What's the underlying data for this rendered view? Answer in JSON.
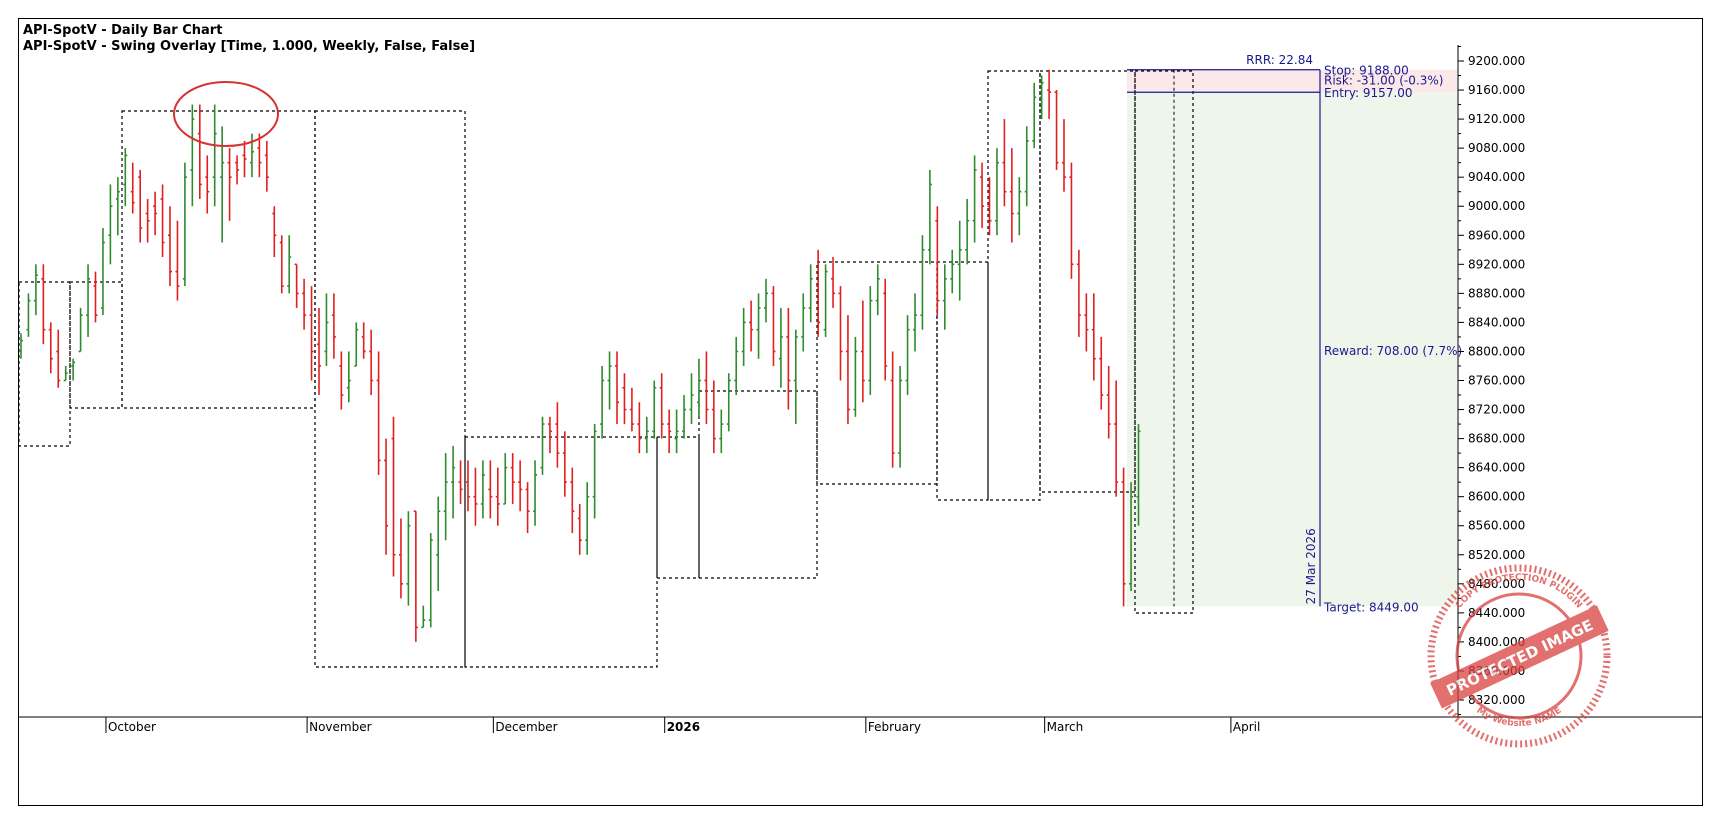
{
  "titles": {
    "line1": "API-SpotV - Daily Bar Chart",
    "line2": "API-SpotV - Swing Overlay [Time, 1.000, Weekly, False, False]"
  },
  "colors": {
    "up_bar": "#2e8b2e",
    "down_bar": "#e02020",
    "neutral_bar": "#000000",
    "trade_line": "#1a1a8c",
    "risk_zone": "#fbe9e9",
    "reward_zone": "#eef6ec",
    "annotation_circle": "#d93030",
    "stamp": "#d9413f"
  },
  "trade": {
    "rrr_label": "RRR: 22.84",
    "stop_label": "Stop: 9188.00",
    "risk_label": "Risk: -31.00 (-0.3%)",
    "entry_label": "Entry: 9157.00",
    "reward_label": "Reward: 708.00 (7.7%)",
    "target_label": "Target: 8449.00",
    "date_label": "27 Mar 2026",
    "stop": 9188,
    "entry": 9157,
    "target": 8449
  },
  "stamp": {
    "main": "PROTECTED IMAGE",
    "ring_top": "COPY PROTECTION PLUGIN",
    "ring_bottom": "My Website NAME"
  },
  "chart_data": {
    "type": "bar",
    "subtype": "ohlc",
    "title": "API-SpotV - Daily Bar Chart",
    "ylim": [
      8280,
      9240
    ],
    "y_ticks": [
      "9200.000",
      "9160.000",
      "9120.000",
      "9080.000",
      "9040.000",
      "9000.000",
      "8960.000",
      "8920.000",
      "8880.000",
      "8840.000",
      "8800.000",
      "8760.000",
      "8720.000",
      "8680.000",
      "8640.000",
      "8600.000",
      "8560.000",
      "8520.000",
      "8480.000",
      "8440.000",
      "8400.000",
      "8360.000",
      "8320.000"
    ],
    "x_months": [
      {
        "label": "October",
        "bold": false,
        "index": 11
      },
      {
        "label": "November",
        "bold": false,
        "index": 38
      },
      {
        "label": "December",
        "bold": false,
        "index": 63
      },
      {
        "label": "2026",
        "bold": true,
        "index": 86
      },
      {
        "label": "February",
        "bold": false,
        "index": 113
      },
      {
        "label": "March",
        "bold": false,
        "index": 137
      },
      {
        "label": "April",
        "bold": false,
        "index": 162
      }
    ],
    "ohlc": [
      [
        8800,
        8825,
        8790,
        8815
      ],
      [
        8830,
        8880,
        8820,
        8870
      ],
      [
        8870,
        8920,
        8850,
        8905
      ],
      [
        8900,
        8920,
        8810,
        8830
      ],
      [
        8830,
        8840,
        8770,
        8790
      ],
      [
        8800,
        8830,
        8750,
        8760
      ],
      [
        8760,
        8780,
        8760,
        8770
      ],
      [
        8780,
        8790,
        8760,
        8785
      ],
      [
        8800,
        8860,
        8800,
        8850
      ],
      [
        8850,
        8920,
        8820,
        8900
      ],
      [
        8890,
        8910,
        8840,
        8850
      ],
      [
        8860,
        8970,
        8850,
        8950
      ],
      [
        8960,
        9030,
        8920,
        9000
      ],
      [
        9010,
        9040,
        8960,
        9020
      ],
      [
        9030,
        9080,
        9000,
        9070
      ],
      [
        9020,
        9060,
        8990,
        9005
      ],
      [
        9040,
        9050,
        8950,
        8970
      ],
      [
        8990,
        9010,
        8950,
        8980
      ],
      [
        9000,
        9020,
        8960,
        8990
      ],
      [
        9010,
        9030,
        8930,
        8950
      ],
      [
        8960,
        9000,
        8890,
        8910
      ],
      [
        8910,
        8980,
        8870,
        8890
      ],
      [
        8900,
        9060,
        8890,
        9040
      ],
      [
        9050,
        9140,
        9000,
        9120
      ],
      [
        9100,
        9140,
        9010,
        9030
      ],
      [
        9040,
        9070,
        8990,
        9020
      ],
      [
        9040,
        9140,
        9000,
        9100
      ],
      [
        9040,
        9110,
        8950,
        9060
      ],
      [
        9060,
        9080,
        8980,
        9040
      ],
      [
        9060,
        9070,
        9030,
        9050
      ],
      [
        9070,
        9090,
        9040,
        9065
      ],
      [
        9060,
        9100,
        9040,
        9075
      ],
      [
        9080,
        9100,
        9040,
        9060
      ],
      [
        9070,
        9090,
        9020,
        9040
      ],
      [
        8990,
        9000,
        8930,
        8960
      ],
      [
        8950,
        8960,
        8880,
        8890
      ],
      [
        8890,
        8960,
        8880,
        8930
      ],
      [
        8920,
        8920,
        8860,
        8880
      ],
      [
        8880,
        8900,
        8830,
        8850
      ],
      [
        8850,
        8890,
        8760,
        8800
      ],
      [
        8810,
        8860,
        8740,
        8780
      ],
      [
        8800,
        8880,
        8780,
        8840
      ],
      [
        8850,
        8880,
        8790,
        8820
      ],
      [
        8780,
        8800,
        8720,
        8740
      ],
      [
        8750,
        8800,
        8730,
        8760
      ],
      [
        8780,
        8840,
        8780,
        8830
      ],
      [
        8820,
        8840,
        8790,
        8800
      ],
      [
        8800,
        8830,
        8740,
        8760
      ],
      [
        8760,
        8800,
        8630,
        8650
      ],
      [
        8650,
        8680,
        8520,
        8560
      ],
      [
        8680,
        8710,
        8490,
        8520
      ],
      [
        8520,
        8570,
        8460,
        8480
      ],
      [
        8480,
        8580,
        8450,
        8560
      ],
      [
        8580,
        8580,
        8400,
        8420
      ],
      [
        8420,
        8450,
        8420,
        8430
      ],
      [
        8430,
        8550,
        8420,
        8540
      ],
      [
        8520,
        8600,
        8470,
        8580
      ],
      [
        8580,
        8660,
        8540,
        8620
      ],
      [
        8620,
        8670,
        8570,
        8640
      ],
      [
        8620,
        8650,
        8590,
        8610
      ],
      [
        8620,
        8650,
        8580,
        8600
      ],
      [
        8600,
        8640,
        8560,
        8590
      ],
      [
        8590,
        8650,
        8570,
        8630
      ],
      [
        8610,
        8650,
        8570,
        8600
      ],
      [
        8600,
        8640,
        8560,
        8590
      ],
      [
        8590,
        8660,
        8590,
        8640
      ],
      [
        8640,
        8660,
        8590,
        8620
      ],
      [
        8620,
        8650,
        8580,
        8610
      ],
      [
        8610,
        8620,
        8550,
        8580
      ],
      [
        8580,
        8650,
        8560,
        8630
      ],
      [
        8640,
        8710,
        8630,
        8700
      ],
      [
        8700,
        8710,
        8660,
        8690
      ],
      [
        8700,
        8730,
        8640,
        8660
      ],
      [
        8660,
        8690,
        8600,
        8620
      ],
      [
        8620,
        8640,
        8550,
        8580
      ],
      [
        8570,
        8590,
        8520,
        8540
      ],
      [
        8540,
        8620,
        8520,
        8600
      ],
      [
        8600,
        8700,
        8570,
        8690
      ],
      [
        8700,
        8780,
        8680,
        8760
      ],
      [
        8760,
        8800,
        8720,
        8780
      ],
      [
        8780,
        8800,
        8700,
        8730
      ],
      [
        8750,
        8770,
        8700,
        8720
      ],
      [
        8720,
        8750,
        8690,
        8700
      ],
      [
        8700,
        8730,
        8660,
        8680
      ],
      [
        8680,
        8710,
        8660,
        8690
      ],
      [
        8690,
        8760,
        8680,
        8750
      ],
      [
        8750,
        8770,
        8680,
        8700
      ],
      [
        8700,
        8720,
        8660,
        8690
      ],
      [
        8680,
        8720,
        8660,
        8690
      ],
      [
        8690,
        8740,
        8680,
        8720
      ],
      [
        8720,
        8770,
        8700,
        8740
      ],
      [
        8730,
        8790,
        8710,
        8760
      ],
      [
        8760,
        8800,
        8700,
        8720
      ],
      [
        8720,
        8760,
        8660,
        8680
      ],
      [
        8680,
        8720,
        8660,
        8700
      ],
      [
        8700,
        8770,
        8690,
        8760
      ],
      [
        8760,
        8820,
        8740,
        8800
      ],
      [
        8800,
        8860,
        8780,
        8840
      ],
      [
        8840,
        8870,
        8800,
        8830
      ],
      [
        8830,
        8880,
        8790,
        8860
      ],
      [
        8860,
        8900,
        8840,
        8880
      ],
      [
        8880,
        8890,
        8780,
        8800
      ],
      [
        8790,
        8860,
        8750,
        8820
      ],
      [
        8820,
        8860,
        8720,
        8760
      ],
      [
        8760,
        8830,
        8700,
        8820
      ],
      [
        8820,
        8880,
        8800,
        8860
      ],
      [
        8860,
        8920,
        8840,
        8900
      ],
      [
        8890,
        8940,
        8820,
        8840
      ],
      [
        8830,
        8920,
        8820,
        8910
      ],
      [
        8900,
        8930,
        8860,
        8880
      ],
      [
        8880,
        8890,
        8760,
        8800
      ],
      [
        8800,
        8850,
        8700,
        8720
      ],
      [
        8720,
        8820,
        8710,
        8800
      ],
      [
        8800,
        8870,
        8730,
        8760
      ],
      [
        8760,
        8890,
        8740,
        8870
      ],
      [
        8870,
        8920,
        8850,
        8900
      ],
      [
        8880,
        8900,
        8760,
        8780
      ],
      [
        8760,
        8800,
        8640,
        8660
      ],
      [
        8660,
        8780,
        8640,
        8760
      ],
      [
        8760,
        8850,
        8740,
        8830
      ],
      [
        8830,
        8880,
        8800,
        8850
      ],
      [
        8850,
        8960,
        8830,
        8940
      ],
      [
        8940,
        9050,
        8920,
        9030
      ],
      [
        8980,
        9000,
        8850,
        8870
      ],
      [
        8870,
        8920,
        8830,
        8900
      ],
      [
        8900,
        8940,
        8880,
        8920
      ],
      [
        8920,
        8980,
        8870,
        8940
      ],
      [
        8940,
        9010,
        8920,
        8980
      ],
      [
        8980,
        9070,
        8950,
        9050
      ],
      [
        9040,
        9060,
        8970,
        9000
      ],
      [
        9000,
        9040,
        8960,
        8980
      ],
      [
        8980,
        9080,
        8960,
        9060
      ],
      [
        9060,
        9120,
        9000,
        9020
      ],
      [
        9020,
        9080,
        8950,
        8990
      ],
      [
        8990,
        9040,
        8960,
        9020
      ],
      [
        9020,
        9110,
        9000,
        9090
      ],
      [
        9090,
        9170,
        9080,
        9150
      ],
      [
        9150,
        9180,
        9120,
        9170
      ],
      [
        9160,
        9188,
        9120,
        9157
      ],
      [
        9157,
        9160,
        9050,
        9060
      ],
      [
        9060,
        9120,
        9020,
        9040
      ],
      [
        9040,
        9060,
        8900,
        8920
      ],
      [
        8920,
        8940,
        8820,
        8850
      ],
      [
        8850,
        8880,
        8800,
        8830
      ],
      [
        8830,
        8880,
        8760,
        8790
      ],
      [
        8790,
        8820,
        8720,
        8740
      ],
      [
        8740,
        8780,
        8680,
        8700
      ],
      [
        8700,
        8760,
        8600,
        8620
      ],
      [
        8620,
        8640,
        8449,
        8480
      ],
      [
        8480,
        8620,
        8470,
        8600
      ],
      [
        8600,
        8700,
        8560,
        8690
      ]
    ]
  }
}
